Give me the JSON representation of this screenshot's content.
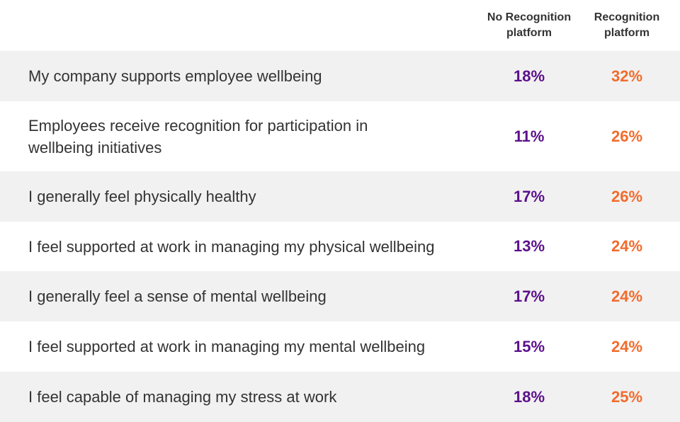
{
  "colors": {
    "no_recognition": "#5b0f8b",
    "recognition": "#f26b2b",
    "row_shade": "#f1f1f1",
    "text": "#333333"
  },
  "chart_data": {
    "type": "table",
    "columns": [
      "No Recognition platform",
      "Recognition platform"
    ],
    "rows": [
      {
        "label": "My company supports employee wellbeing",
        "no_recognition": "18%",
        "recognition": "32%"
      },
      {
        "label": "Employees receive recognition for participation in wellbeing initiatives",
        "no_recognition": "11%",
        "recognition": "26%"
      },
      {
        "label": "I generally feel physically healthy",
        "no_recognition": "17%",
        "recognition": "26%"
      },
      {
        "label": "I feel supported at work in managing my physical wellbeing",
        "no_recognition": "13%",
        "recognition": "24%"
      },
      {
        "label": "I generally feel a sense of mental wellbeing",
        "no_recognition": "17%",
        "recognition": "24%"
      },
      {
        "label": "I feel supported at work in managing my mental wellbeing",
        "no_recognition": "15%",
        "recognition": "24%"
      },
      {
        "label": "I feel capable of managing my stress at work",
        "no_recognition": "18%",
        "recognition": "25%"
      }
    ]
  }
}
